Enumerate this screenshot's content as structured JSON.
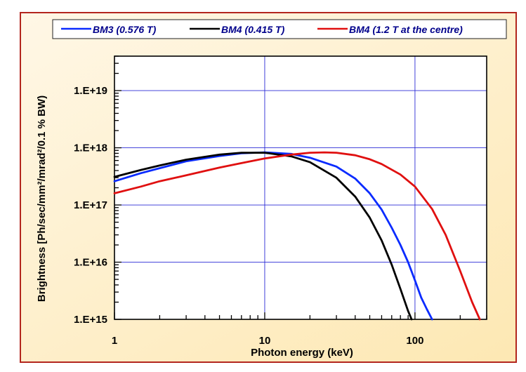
{
  "chart_data": {
    "type": "line",
    "xlabel": "Photon energy (keV)",
    "ylabel": "Brightness [Ph/sec/mm²/mrad²/0.1 % BW)",
    "x_scale": "log",
    "y_scale": "log",
    "xlim": [
      1,
      300
    ],
    "ylim": [
      1000000000000000.0,
      4e+19
    ],
    "x_ticks": [
      1,
      10,
      100
    ],
    "x_tick_labels": [
      "1",
      "10",
      "100"
    ],
    "y_ticks": [
      1000000000000000.0,
      1e+16,
      1e+17,
      1e+18,
      1e+19
    ],
    "y_tick_labels": [
      "1.E+15",
      "1.E+16",
      "1.E+17",
      "1.E+18",
      "1.E+19"
    ],
    "grid": true,
    "legend_position": "top",
    "series": [
      {
        "name": "BM3 (0.576 T)",
        "color": "#0a2bff",
        "x": [
          1,
          1.5,
          2,
          3,
          5,
          7,
          10,
          15,
          20,
          30,
          40,
          50,
          60,
          70,
          80,
          90,
          100,
          110,
          120,
          130
        ],
        "y": [
          2.6e+17,
          3.6e+17,
          4.4e+17,
          5.8e+17,
          7.2e+17,
          8e+17,
          8.3e+17,
          7.8e+17,
          6.7e+17,
          4.7e+17,
          2.9e+17,
          1.6e+17,
          8.3e+16,
          4e+16,
          2e+16,
          1e+16,
          4800000000000000.0,
          2400000000000000.0,
          1500000000000000.0,
          1000000000000000.0
        ]
      },
      {
        "name": "BM4 (0.415 T)",
        "color": "#000000",
        "x": [
          1,
          1.5,
          2,
          3,
          5,
          7,
          10,
          15,
          20,
          30,
          40,
          50,
          60,
          70,
          80,
          90,
          95
        ],
        "y": [
          3.1e+17,
          4.1e+17,
          4.9e+17,
          6.2e+17,
          7.6e+17,
          8.2e+17,
          8.2e+17,
          7.1e+17,
          5.6e+17,
          3e+17,
          1.4e+17,
          6e+16,
          2.4e+16,
          9000000000000000.0,
          3400000000000000.0,
          1400000000000000.0,
          1000000000000000.0
        ]
      },
      {
        "name": "BM4 (1.2 T at the centre)",
        "color": "#e01010",
        "x": [
          1,
          1.5,
          2,
          3,
          5,
          7,
          10,
          15,
          20,
          25,
          30,
          40,
          50,
          60,
          80,
          100,
          130,
          160,
          200,
          240,
          270
        ],
        "y": [
          1.6e+17,
          2.1e+17,
          2.6e+17,
          3.3e+17,
          4.5e+17,
          5.4e+17,
          6.5e+17,
          7.6e+17,
          8.2e+17,
          8.3e+17,
          8.2e+17,
          7.4e+17,
          6.3e+17,
          5.2e+17,
          3.4e+17,
          2.1e+17,
          8.5e+16,
          3e+16,
          7000000000000000.0,
          2000000000000000.0,
          1000000000000000.0
        ]
      }
    ]
  }
}
